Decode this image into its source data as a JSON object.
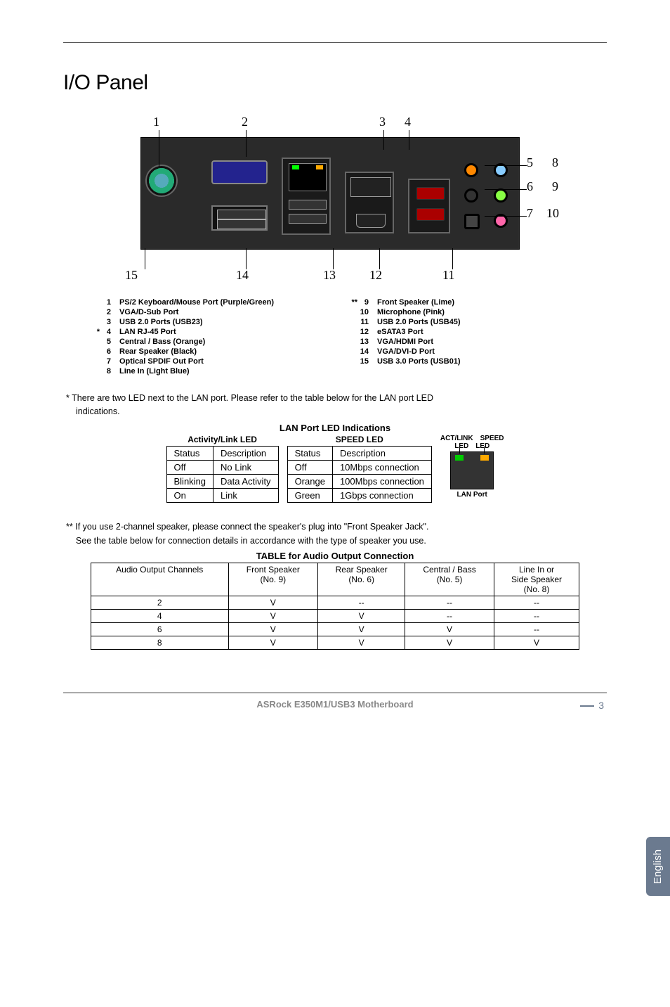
{
  "header": {
    "title": "I/O Panel"
  },
  "diagram": {
    "top_numbers": [
      "1",
      "2",
      "3",
      "4"
    ],
    "right_numbers_inner": [
      "5",
      "6",
      "7"
    ],
    "right_numbers_outer": [
      "8",
      "9",
      "10"
    ],
    "bottom_numbers": [
      "15",
      "14",
      "13",
      "12",
      "11"
    ]
  },
  "port_list": {
    "left": [
      {
        "pre": "",
        "n": "1",
        "label": "PS/2  Keyboard/Mouse  Port  (Purple/Green)"
      },
      {
        "pre": "",
        "n": "2",
        "label": "VGA/D-Sub  Port"
      },
      {
        "pre": "",
        "n": "3",
        "label": "USB 2.0  Ports  (USB23)"
      },
      {
        "pre": "*",
        "n": "4",
        "label": "LAN  RJ-45  Port"
      },
      {
        "pre": "",
        "n": "5",
        "label": "Central / Bass  (Orange)"
      },
      {
        "pre": "",
        "n": "6",
        "label": "Rear  Speaker  (Black)"
      },
      {
        "pre": "",
        "n": "7",
        "label": "Optical  SPDIF  Out  Port"
      },
      {
        "pre": "",
        "n": "8",
        "label": "Line  In  (Light  Blue)"
      }
    ],
    "right": [
      {
        "pre": "**",
        "n": "9",
        "label": "Front  Speaker  (Lime)"
      },
      {
        "pre": "",
        "n": "10",
        "label": "Microphone  (Pink)"
      },
      {
        "pre": "",
        "n": "11",
        "label": "USB 2.0  Ports  (USB45)"
      },
      {
        "pre": "",
        "n": "12",
        "label": "eSATA3  Port"
      },
      {
        "pre": "",
        "n": "13",
        "label": "VGA/HDMI  Port"
      },
      {
        "pre": "",
        "n": "14",
        "label": "VGA/DVI-D  Port"
      },
      {
        "pre": "",
        "n": "15",
        "label": "USB 3.0  Ports  (USB01)"
      }
    ]
  },
  "lan_note": {
    "star": "*",
    "line1": "There are two LED next to the LAN port. Please refer to the table below for the LAN port LED",
    "line2": "indications."
  },
  "lan_section": {
    "title": "LAN Port LED Indications",
    "activity": {
      "caption": "Activity/Link LED",
      "columns": [
        "Status",
        "Description"
      ],
      "rows": [
        [
          "Off",
          "No Link"
        ],
        [
          "Blinking",
          "Data Activity"
        ],
        [
          "On",
          "Link"
        ]
      ]
    },
    "speed": {
      "caption": "SPEED LED",
      "columns": [
        "Status",
        "Description"
      ],
      "rows": [
        [
          "Off",
          "10Mbps connection"
        ],
        [
          "Orange",
          "100Mbps connection"
        ],
        [
          "Green",
          "1Gbps connection"
        ]
      ]
    },
    "diagram": {
      "top_labels": [
        "ACT/LINK",
        "SPEED"
      ],
      "led_labels": [
        "LED",
        "LED"
      ],
      "port_label": "LAN Port"
    }
  },
  "audio_note": {
    "stars": "**",
    "line1": "If you use 2-channel speaker, please connect the speaker's plug into \"Front Speaker Jack\".",
    "line2": "See the table below for connection details in accordance with the type of speaker you use."
  },
  "audio_table": {
    "title": "TABLE for Audio Output  Connection",
    "header_row1": [
      "Audio Output Channels",
      "Front Speaker",
      "Rear Speaker",
      "Central / Bass",
      "Line In or"
    ],
    "header_row2": [
      "",
      "(No. 9)",
      "(No. 6)",
      "(No. 5)",
      "Side Speaker"
    ],
    "header_row3": [
      "",
      "",
      "",
      "",
      "(No. 8)"
    ],
    "rows": [
      [
        "2",
        "V",
        "--",
        "--",
        "--"
      ],
      [
        "4",
        "V",
        "V",
        "--",
        "--"
      ],
      [
        "6",
        "V",
        "V",
        "V",
        "--"
      ],
      [
        "8",
        "V",
        "V",
        "V",
        "V"
      ]
    ]
  },
  "side_tab": "English",
  "footer": {
    "text": "ASRock  E350M1/USB3  Motherboard",
    "page": "3"
  }
}
